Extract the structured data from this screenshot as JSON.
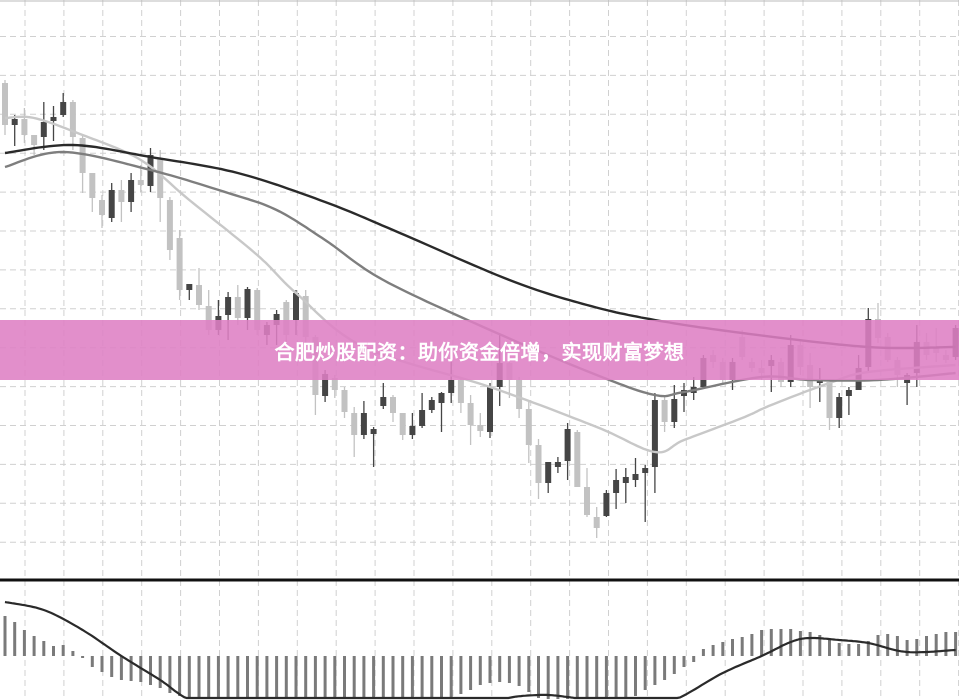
{
  "banner": {
    "text": "合肥炒股配资：助你资金倍增，实现财富梦想",
    "color": "#de80c4"
  },
  "colors": {
    "up": "#454545",
    "down": "#c2c2c2",
    "ma_fast": "#c8c8c8",
    "ma_mid": "#7e7e7e",
    "ma_slow": "#2a2a2a",
    "histogram": "#7a7a7a",
    "signal": "#2a2a2a",
    "grid": "#d0d0d0"
  },
  "chart_data": [
    {
      "type": "candlestick",
      "title": "",
      "grid": true,
      "axis_labels_shown": false,
      "ohlc": [
        [
          51.7,
          52.0,
          46.5,
          47.5
        ],
        [
          47.5,
          48.5,
          45.4,
          48.1
        ],
        [
          48.1,
          49.2,
          45.7,
          46.5
        ],
        [
          46.5,
          46.5,
          44.5,
          45.5
        ],
        [
          46.3,
          49.8,
          45.0,
          47.8
        ],
        [
          47.9,
          49.4,
          45.9,
          48.3
        ],
        [
          48.5,
          50.7,
          48.3,
          49.8
        ],
        [
          49.8,
          50.0,
          45.0,
          46.3
        ],
        [
          46.2,
          46.5,
          40.7,
          42.7
        ],
        [
          42.7,
          42.7,
          38.8,
          40.2
        ],
        [
          40.0,
          40.5,
          37.2,
          38.5
        ],
        [
          38.2,
          41.7,
          37.8,
          41.0
        ],
        [
          41.0,
          42.0,
          37.8,
          39.8
        ],
        [
          39.8,
          42.7,
          38.8,
          42.0
        ],
        [
          42.0,
          43.5,
          40.8,
          41.5
        ],
        [
          41.4,
          45.2,
          40.8,
          44.5
        ],
        [
          44.2,
          45.0,
          37.8,
          40.2
        ],
        [
          40.0,
          40.3,
          34.0,
          35.0
        ],
        [
          36.2,
          37.0,
          30.0,
          31.0
        ],
        [
          31.0,
          31.6,
          30.0,
          31.6
        ],
        [
          31.5,
          33.2,
          29.0,
          29.5
        ],
        [
          29.4,
          31.0,
          26.5,
          27.0
        ],
        [
          27.0,
          30.0,
          26.5,
          28.4
        ],
        [
          28.5,
          30.8,
          26.0,
          30.3
        ],
        [
          30.3,
          31.5,
          27.5,
          28.2
        ],
        [
          28.2,
          31.3,
          27.0,
          31.1
        ],
        [
          31.0,
          31.2,
          26.5,
          27.0
        ],
        [
          26.5,
          27.8,
          25.5,
          27.5
        ],
        [
          27.5,
          29.0,
          25.5,
          28.6
        ],
        [
          29.8,
          30.0,
          25.5,
          26.5
        ],
        [
          28.0,
          31.0,
          26.5,
          30.7
        ],
        [
          30.4,
          31.0,
          25.5,
          26.3
        ],
        [
          26.3,
          26.5,
          18.5,
          20.5
        ],
        [
          20.4,
          23.0,
          19.8,
          22.6
        ],
        [
          22.2,
          22.5,
          20.2,
          21.0
        ],
        [
          21.0,
          21.3,
          18.2,
          18.8
        ],
        [
          18.7,
          19.3,
          14.3,
          16.5
        ],
        [
          16.5,
          19.9,
          16.1,
          18.7
        ],
        [
          16.6,
          17.3,
          13.3,
          17.1
        ],
        [
          19.4,
          21.7,
          19.1,
          20.3
        ],
        [
          20.3,
          20.5,
          17.8,
          18.7
        ],
        [
          18.7,
          18.7,
          16.0,
          16.5
        ],
        [
          16.5,
          18.7,
          16.1,
          17.4
        ],
        [
          17.4,
          20.7,
          17.2,
          19.0
        ],
        [
          19.0,
          20.3,
          18.7,
          20.0
        ],
        [
          19.7,
          20.8,
          16.8,
          20.7
        ],
        [
          20.7,
          23.8,
          19.7,
          22.0
        ],
        [
          22.0,
          22.3,
          18.7,
          19.7
        ],
        [
          19.7,
          20.5,
          15.5,
          17.5
        ],
        [
          17.5,
          18.7,
          16.3,
          16.9
        ],
        [
          16.8,
          21.7,
          16.2,
          21.3
        ],
        [
          21.3,
          26.5,
          19.4,
          23.7
        ],
        [
          23.7,
          24.2,
          20.2,
          22.0
        ],
        [
          22.0,
          22.3,
          18.2,
          19.1
        ],
        [
          19.1,
          20.0,
          13.7,
          15.5
        ],
        [
          15.5,
          16.1,
          10.1,
          11.7
        ],
        [
          11.7,
          13.8,
          10.7,
          13.8
        ],
        [
          13.3,
          14.3,
          12.7,
          13.8
        ],
        [
          13.9,
          17.7,
          12.0,
          17.1
        ],
        [
          16.8,
          17.0,
          11.3,
          11.3
        ],
        [
          11.3,
          13.2,
          8.3,
          8.5
        ],
        [
          8.3,
          9.3,
          6.2,
          7.2
        ],
        [
          8.4,
          11.0,
          8.3,
          10.7
        ],
        [
          10.7,
          13.1,
          9.1,
          12.0
        ],
        [
          11.7,
          13.2,
          9.7,
          12.3
        ],
        [
          12.0,
          14.2,
          11.3,
          12.6
        ],
        [
          12.7,
          13.5,
          7.8,
          13.2
        ],
        [
          13.3,
          20.7,
          10.7,
          20.0
        ],
        [
          20.0,
          20.5,
          16.8,
          17.8
        ],
        [
          17.8,
          21.5,
          17.2,
          20.1
        ],
        [
          20.4,
          21.7,
          18.8,
          21.0
        ],
        [
          20.7,
          22.3,
          20.0,
          21.3
        ],
        [
          21.3,
          24.5,
          21.2,
          24.2
        ],
        [
          24.5,
          25.0,
          23.2,
          23.8
        ],
        [
          23.8,
          24.2,
          21.5,
          22.0
        ],
        [
          22.0,
          24.2,
          21.0,
          23.8
        ],
        [
          26.3,
          27.0,
          24.0,
          24.3
        ],
        [
          23.8,
          24.2,
          22.8,
          23.2
        ],
        [
          23.2,
          24.0,
          22.0,
          22.7
        ],
        [
          23.4,
          24.5,
          20.8,
          24.0
        ],
        [
          23.8,
          24.2,
          21.3,
          21.8
        ],
        [
          21.8,
          26.5,
          21.3,
          25.5
        ],
        [
          25.5,
          26.0,
          22.5,
          23.3
        ],
        [
          23.5,
          24.7,
          19.2,
          21.3
        ],
        [
          21.7,
          23.2,
          19.8,
          22.0
        ],
        [
          21.8,
          21.8,
          17.0,
          18.2
        ],
        [
          18.2,
          20.7,
          17.2,
          20.3
        ],
        [
          20.4,
          21.3,
          18.5,
          21.0
        ],
        [
          21.0,
          24.5,
          21.0,
          23.2
        ],
        [
          23.3,
          29.2,
          22.8,
          28.1
        ],
        [
          28.1,
          29.7,
          25.7,
          26.2
        ],
        [
          26.3,
          26.7,
          23.8,
          24.0
        ],
        [
          24.0,
          24.3,
          21.3,
          22.5
        ],
        [
          21.7,
          22.7,
          19.5,
          22.5
        ],
        [
          22.7,
          27.5,
          21.3,
          25.8
        ],
        [
          25.8,
          26.7,
          24.0,
          24.5
        ],
        [
          25.2,
          27.2,
          23.8,
          24.7
        ],
        [
          24.5,
          25.0,
          23.7,
          24.0
        ],
        [
          24.3,
          27.5,
          24.0,
          27.2
        ]
      ],
      "moving_averages": [
        {
          "role": "fast",
          "points": [
            [
              0,
              48.2
            ],
            [
              3,
              48.2
            ],
            [
              8,
              46.5
            ],
            [
              14,
              44.0
            ],
            [
              19,
              40.0
            ],
            [
              26,
              34.5
            ],
            [
              30,
              30.7
            ],
            [
              37,
              25.3
            ],
            [
              50,
              21.3
            ],
            [
              61,
              17.3
            ],
            [
              67,
              14.8
            ],
            [
              70,
              16.0
            ],
            [
              76,
              18.2
            ],
            [
              79,
              19.5
            ],
            [
              85,
              21.7
            ],
            [
              89,
              22.8
            ],
            [
              98,
              23.5
            ]
          ]
        },
        {
          "role": "mid",
          "points": [
            [
              0,
              43.3
            ],
            [
              6,
              44.8
            ],
            [
              15,
              43.0
            ],
            [
              23,
              40.7
            ],
            [
              28,
              39.0
            ],
            [
              33,
              36.0
            ],
            [
              39,
              32.0
            ],
            [
              50,
              27.0
            ],
            [
              61,
              22.5
            ],
            [
              67,
              20.5
            ],
            [
              70,
              20.8
            ],
            [
              78,
              22.3
            ],
            [
              83,
              22.0
            ],
            [
              90,
              22.0
            ],
            [
              98,
              22.7
            ]
          ]
        },
        {
          "role": "slow",
          "points": [
            [
              0,
              44.7
            ],
            [
              7,
              45.5
            ],
            [
              15,
              44.3
            ],
            [
              24,
              42.7
            ],
            [
              33,
              39.8
            ],
            [
              40,
              37.0
            ],
            [
              52,
              32.0
            ],
            [
              60,
              29.5
            ],
            [
              67,
              28.0
            ],
            [
              76,
              26.7
            ],
            [
              89,
              25.3
            ],
            [
              98,
              25.3
            ]
          ]
        }
      ],
      "ylim": [
        2,
        60
      ]
    },
    {
      "type": "bar",
      "indicator": "macd",
      "histogram": [
        4.0,
        3.4,
        2.6,
        2.0,
        1.5,
        1.0,
        1.1,
        0.5,
        -0.2,
        -1.1,
        -1.6,
        -2.1,
        -2.4,
        -2.5,
        -2.6,
        -2.9,
        -3.2,
        -3.7,
        -4.0,
        -4.5,
        -5,
        -5.5,
        -6,
        -6.3,
        -6.6,
        -6.8,
        -7,
        -7,
        -7,
        -6.8,
        -6.6,
        -6.4,
        -6.2,
        -6,
        -6,
        -5.8,
        -5.6,
        -5.5,
        -5.4,
        -5.3,
        -5.2,
        -5.0,
        -4.9,
        -4.8,
        -4.7,
        -4.5,
        -4.2,
        -3.8,
        -3.4,
        -2.9,
        -2.7,
        -2.6,
        -2.7,
        -3.0,
        -3.6,
        -4.2,
        -4.8,
        -5.2,
        -5.5,
        -5.6,
        -5.6,
        -5.4,
        -5.1,
        -4.8,
        -4.4,
        -4.0,
        -3.4,
        -2.9,
        -2.4,
        -1.8,
        -1.1,
        -0.6,
        0.7,
        1.1,
        1.4,
        1.7,
        1.9,
        2.2,
        2.6,
        2.7,
        2.7,
        2.7,
        2.5,
        2.4,
        2.1,
        1.6,
        1.3,
        1.2,
        1.2,
        1.5,
        2.1,
        2.2,
        2.0,
        1.6,
        1.7,
        2.0,
        2.2,
        2.4,
        2.4
      ],
      "signal_points": [
        [
          0,
          5.4
        ],
        [
          4,
          4.6
        ],
        [
          8,
          2.6
        ],
        [
          12,
          0.0
        ],
        [
          16,
          -2.4
        ],
        [
          19,
          -4.4
        ],
        [
          25,
          -7
        ],
        [
          35,
          -8
        ],
        [
          45,
          -6.5
        ],
        [
          51,
          -4.4
        ],
        [
          55,
          -3.9
        ],
        [
          58,
          -4.1
        ],
        [
          61,
          -4.6
        ],
        [
          65,
          -5.2
        ],
        [
          69,
          -4.4
        ],
        [
          74,
          -1.7
        ],
        [
          78,
          0.0
        ],
        [
          81,
          1.4
        ],
        [
          83,
          1.8
        ],
        [
          86,
          1.6
        ],
        [
          89,
          1.3
        ],
        [
          93,
          0.4
        ],
        [
          98,
          0.6
        ]
      ],
      "ylim": [
        -4.4,
        7.4
      ]
    }
  ]
}
